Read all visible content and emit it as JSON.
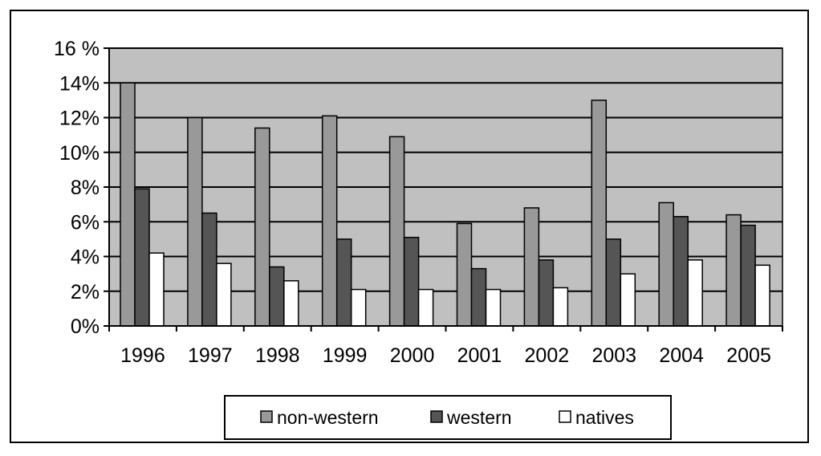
{
  "chart_data": {
    "type": "bar",
    "title": "",
    "xlabel": "",
    "ylabel": "",
    "categories": [
      "1996",
      "1997",
      "1998",
      "1999",
      "2000",
      "2001",
      "2002",
      "2003",
      "2004",
      "2005"
    ],
    "series": [
      {
        "name": "non-western",
        "values": [
          14.0,
          12.0,
          11.4,
          12.1,
          10.9,
          5.9,
          6.8,
          13.0,
          7.1,
          6.4
        ]
      },
      {
        "name": "western",
        "values": [
          7.9,
          6.5,
          3.4,
          5.0,
          5.1,
          3.3,
          3.8,
          5.0,
          6.3,
          5.8
        ]
      },
      {
        "name": "natives",
        "values": [
          4.2,
          3.6,
          2.6,
          2.1,
          2.1,
          2.1,
          2.2,
          3.0,
          3.8,
          3.5
        ]
      }
    ],
    "ylim": [
      0,
      16
    ],
    "yticks": [
      "0%",
      "2%",
      "4%",
      "6%",
      "8%",
      "10%",
      "12%",
      "14%",
      "16 %"
    ],
    "grid": true,
    "legend_position": "bottom",
    "colors": {
      "plot_background": "#c0c0c0",
      "non-western": "#999999",
      "western": "#555555",
      "natives": "#ffffff"
    }
  }
}
